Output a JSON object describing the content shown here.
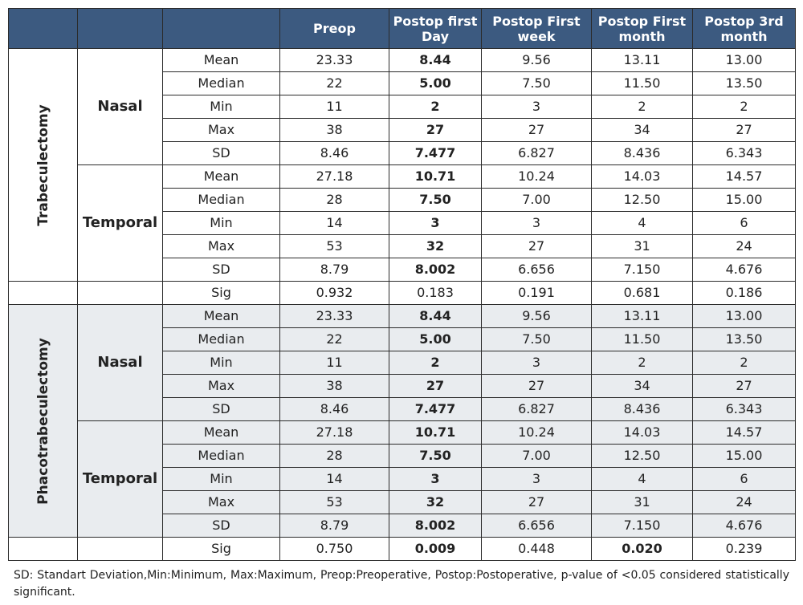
{
  "header": {
    "c0": "",
    "c1": "",
    "c2": "",
    "preop": "Preop",
    "pod1": "Postop first Day",
    "pow1": "Postop First week",
    "pom1": "Postop First month",
    "pom3": "Postop 3rd month"
  },
  "groups": [
    {
      "name": "Trabeculectomy",
      "subs": [
        {
          "name": "Nasal",
          "rows": [
            {
              "stat": "Mean",
              "v": [
                "23.33",
                "8.44",
                "9.56",
                "13.11",
                "13.00"
              ]
            },
            {
              "stat": "Median",
              "v": [
                "22",
                "5.00",
                "7.50",
                "11.50",
                "13.50"
              ]
            },
            {
              "stat": "Min",
              "v": [
                "11",
                "2",
                "3",
                "2",
                "2"
              ]
            },
            {
              "stat": "Max",
              "v": [
                "38",
                "27",
                "27",
                "34",
                "27"
              ]
            },
            {
              "stat": "SD",
              "v": [
                "8.46",
                "7.477",
                "6.827",
                "8.436",
                "6.343"
              ]
            }
          ]
        },
        {
          "name": "Temporal",
          "rows": [
            {
              "stat": "Mean",
              "v": [
                "27.18",
                "10.71",
                "10.24",
                "14.03",
                "14.57"
              ]
            },
            {
              "stat": "Median",
              "v": [
                "28",
                "7.50",
                "7.00",
                "12.50",
                "15.00"
              ]
            },
            {
              "stat": "Min",
              "v": [
                "14",
                "3",
                "3",
                "4",
                "6"
              ]
            },
            {
              "stat": "Max",
              "v": [
                "53",
                "32",
                "27",
                "31",
                "24"
              ]
            },
            {
              "stat": "SD",
              "v": [
                "8.79",
                "8.002",
                "6.656",
                "7.150",
                "4.676"
              ]
            }
          ]
        }
      ],
      "sig": {
        "stat": "Sig",
        "v": [
          "0.932",
          "0.183",
          "0.191",
          "0.681",
          "0.186"
        ]
      }
    },
    {
      "name": "Phacotrabeculectomy",
      "subs": [
        {
          "name": "Nasal",
          "rows": [
            {
              "stat": "Mean",
              "v": [
                "23.33",
                "8.44",
                "9.56",
                "13.11",
                "13.00"
              ]
            },
            {
              "stat": "Median",
              "v": [
                "22",
                "5.00",
                "7.50",
                "11.50",
                "13.50"
              ]
            },
            {
              "stat": "Min",
              "v": [
                "11",
                "2",
                "3",
                "2",
                "2"
              ]
            },
            {
              "stat": "Max",
              "v": [
                "38",
                "27",
                "27",
                "34",
                "27"
              ]
            },
            {
              "stat": "SD",
              "v": [
                "8.46",
                "7.477",
                "6.827",
                "8.436",
                "6.343"
              ]
            }
          ]
        },
        {
          "name": "Temporal",
          "rows": [
            {
              "stat": "Mean",
              "v": [
                "27.18",
                "10.71",
                "10.24",
                "14.03",
                "14.57"
              ]
            },
            {
              "stat": "Median",
              "v": [
                "28",
                "7.50",
                "7.00",
                "12.50",
                "15.00"
              ]
            },
            {
              "stat": "Min",
              "v": [
                "14",
                "3",
                "3",
                "4",
                "6"
              ]
            },
            {
              "stat": "Max",
              "v": [
                "53",
                "32",
                "27",
                "31",
                "24"
              ]
            },
            {
              "stat": "SD",
              "v": [
                "8.79",
                "8.002",
                "6.656",
                "7.150",
                "4.676"
              ]
            }
          ]
        }
      ],
      "sig": {
        "stat": "Sig",
        "v": [
          "0.750",
          "0.009",
          "0.448",
          "0.020",
          "0.239"
        ]
      }
    }
  ],
  "footnote": "SD: Standart Deviation,Min:Minimum, Max:Maximum, Preop:Preoperative, Postop:Postoperative, p-value of <0.05 considered statistically significant."
}
